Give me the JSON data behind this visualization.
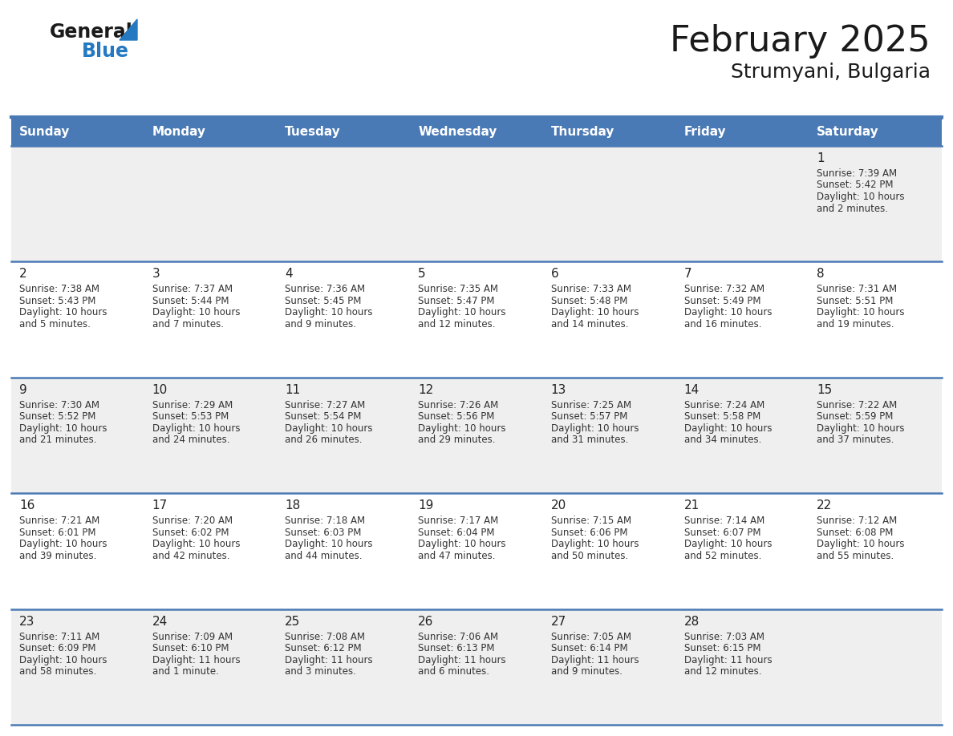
{
  "title": "February 2025",
  "subtitle": "Strumyani, Bulgaria",
  "header_color": "#4a7ab5",
  "header_text_color": "#ffffff",
  "cell_bg_odd": "#efefef",
  "cell_bg_even": "#ffffff",
  "day_number_color": "#222222",
  "text_color": "#333333",
  "line_color": "#4a7ab5",
  "bg_color": "#ffffff",
  "days_of_week": [
    "Sunday",
    "Monday",
    "Tuesday",
    "Wednesday",
    "Thursday",
    "Friday",
    "Saturday"
  ],
  "weeks": [
    [
      {
        "day": null,
        "info": null
      },
      {
        "day": null,
        "info": null
      },
      {
        "day": null,
        "info": null
      },
      {
        "day": null,
        "info": null
      },
      {
        "day": null,
        "info": null
      },
      {
        "day": null,
        "info": null
      },
      {
        "day": 1,
        "info": "Sunrise: 7:39 AM\nSunset: 5:42 PM\nDaylight: 10 hours\nand 2 minutes."
      }
    ],
    [
      {
        "day": 2,
        "info": "Sunrise: 7:38 AM\nSunset: 5:43 PM\nDaylight: 10 hours\nand 5 minutes."
      },
      {
        "day": 3,
        "info": "Sunrise: 7:37 AM\nSunset: 5:44 PM\nDaylight: 10 hours\nand 7 minutes."
      },
      {
        "day": 4,
        "info": "Sunrise: 7:36 AM\nSunset: 5:45 PM\nDaylight: 10 hours\nand 9 minutes."
      },
      {
        "day": 5,
        "info": "Sunrise: 7:35 AM\nSunset: 5:47 PM\nDaylight: 10 hours\nand 12 minutes."
      },
      {
        "day": 6,
        "info": "Sunrise: 7:33 AM\nSunset: 5:48 PM\nDaylight: 10 hours\nand 14 minutes."
      },
      {
        "day": 7,
        "info": "Sunrise: 7:32 AM\nSunset: 5:49 PM\nDaylight: 10 hours\nand 16 minutes."
      },
      {
        "day": 8,
        "info": "Sunrise: 7:31 AM\nSunset: 5:51 PM\nDaylight: 10 hours\nand 19 minutes."
      }
    ],
    [
      {
        "day": 9,
        "info": "Sunrise: 7:30 AM\nSunset: 5:52 PM\nDaylight: 10 hours\nand 21 minutes."
      },
      {
        "day": 10,
        "info": "Sunrise: 7:29 AM\nSunset: 5:53 PM\nDaylight: 10 hours\nand 24 minutes."
      },
      {
        "day": 11,
        "info": "Sunrise: 7:27 AM\nSunset: 5:54 PM\nDaylight: 10 hours\nand 26 minutes."
      },
      {
        "day": 12,
        "info": "Sunrise: 7:26 AM\nSunset: 5:56 PM\nDaylight: 10 hours\nand 29 minutes."
      },
      {
        "day": 13,
        "info": "Sunrise: 7:25 AM\nSunset: 5:57 PM\nDaylight: 10 hours\nand 31 minutes."
      },
      {
        "day": 14,
        "info": "Sunrise: 7:24 AM\nSunset: 5:58 PM\nDaylight: 10 hours\nand 34 minutes."
      },
      {
        "day": 15,
        "info": "Sunrise: 7:22 AM\nSunset: 5:59 PM\nDaylight: 10 hours\nand 37 minutes."
      }
    ],
    [
      {
        "day": 16,
        "info": "Sunrise: 7:21 AM\nSunset: 6:01 PM\nDaylight: 10 hours\nand 39 minutes."
      },
      {
        "day": 17,
        "info": "Sunrise: 7:20 AM\nSunset: 6:02 PM\nDaylight: 10 hours\nand 42 minutes."
      },
      {
        "day": 18,
        "info": "Sunrise: 7:18 AM\nSunset: 6:03 PM\nDaylight: 10 hours\nand 44 minutes."
      },
      {
        "day": 19,
        "info": "Sunrise: 7:17 AM\nSunset: 6:04 PM\nDaylight: 10 hours\nand 47 minutes."
      },
      {
        "day": 20,
        "info": "Sunrise: 7:15 AM\nSunset: 6:06 PM\nDaylight: 10 hours\nand 50 minutes."
      },
      {
        "day": 21,
        "info": "Sunrise: 7:14 AM\nSunset: 6:07 PM\nDaylight: 10 hours\nand 52 minutes."
      },
      {
        "day": 22,
        "info": "Sunrise: 7:12 AM\nSunset: 6:08 PM\nDaylight: 10 hours\nand 55 minutes."
      }
    ],
    [
      {
        "day": 23,
        "info": "Sunrise: 7:11 AM\nSunset: 6:09 PM\nDaylight: 10 hours\nand 58 minutes."
      },
      {
        "day": 24,
        "info": "Sunrise: 7:09 AM\nSunset: 6:10 PM\nDaylight: 11 hours\nand 1 minute."
      },
      {
        "day": 25,
        "info": "Sunrise: 7:08 AM\nSunset: 6:12 PM\nDaylight: 11 hours\nand 3 minutes."
      },
      {
        "day": 26,
        "info": "Sunrise: 7:06 AM\nSunset: 6:13 PM\nDaylight: 11 hours\nand 6 minutes."
      },
      {
        "day": 27,
        "info": "Sunrise: 7:05 AM\nSunset: 6:14 PM\nDaylight: 11 hours\nand 9 minutes."
      },
      {
        "day": 28,
        "info": "Sunrise: 7:03 AM\nSunset: 6:15 PM\nDaylight: 11 hours\nand 12 minutes."
      },
      {
        "day": null,
        "info": null
      }
    ]
  ],
  "logo_text_general": "General",
  "logo_text_blue": "Blue",
  "logo_color_general": "#1a1a1a",
  "logo_color_blue": "#2479c0",
  "logo_triangle_color": "#2479c0",
  "title_fontsize": 32,
  "subtitle_fontsize": 18,
  "header_fontsize": 11,
  "day_number_fontsize": 11,
  "info_fontsize": 8.5
}
